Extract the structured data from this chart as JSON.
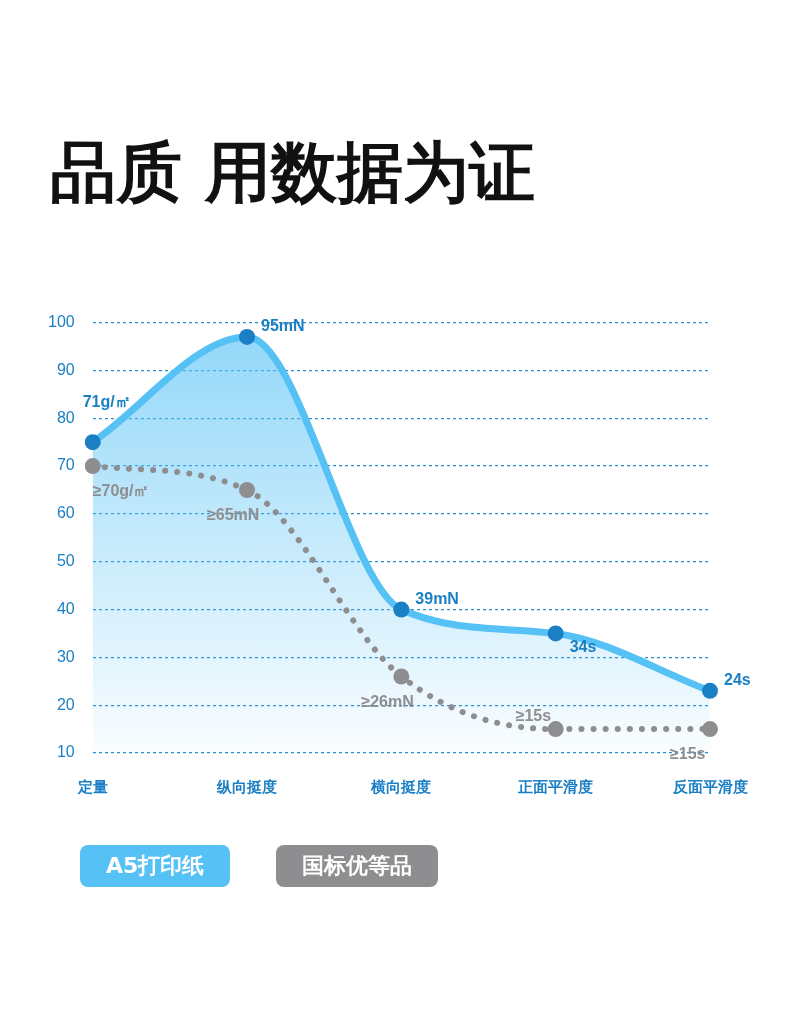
{
  "chart_data": {
    "type": "line",
    "title": "品质 用数据为证",
    "categories": [
      "定量",
      "纵向挺度",
      "横向挺度",
      "正面平滑度",
      "反面平滑度"
    ],
    "series": [
      {
        "name": "A5打印纸",
        "type": "area",
        "color": "#55c1f5",
        "marker": "circle",
        "line_style": "solid",
        "values": [
          75,
          97,
          40,
          35,
          23
        ]
      },
      {
        "name": "国标优等品",
        "type": "line",
        "color": "#8e8e90",
        "marker": "circle",
        "line_style": "dotted",
        "values": [
          70,
          65,
          26,
          15,
          15
        ]
      }
    ],
    "annotations": [
      {
        "text": "71g/㎡",
        "x": "定量",
        "y": 75
      },
      {
        "text": "95mN",
        "x": "纵向挺度",
        "y": 97
      },
      {
        "text": "39mN",
        "x": "横向挺度",
        "y": 40
      },
      {
        "text": "34s",
        "x": "正面平滑度",
        "y": 35
      },
      {
        "text": "24s",
        "x": "反面平滑度",
        "y": 23
      },
      {
        "text": "≥70g/㎡",
        "x": "定量",
        "y": 70
      },
      {
        "text": "≥65mN",
        "x": "纵向挺度",
        "y": 65
      },
      {
        "text": "≥26mN",
        "x": "横向挺度",
        "y": 26
      },
      {
        "text": "≥15s",
        "x": "正面平滑度",
        "y": 15
      },
      {
        "text": "≥15s",
        "x": "反面平滑度",
        "y": 15
      }
    ],
    "ylim": [
      10,
      100
    ],
    "yticks": [
      10,
      20,
      30,
      40,
      50,
      60,
      70,
      80,
      90,
      100
    ],
    "grid": "y",
    "legend": "bottom"
  }
}
